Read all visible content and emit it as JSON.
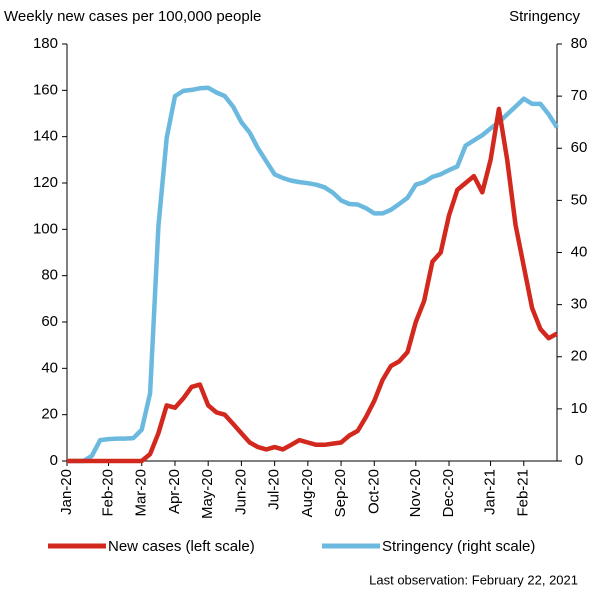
{
  "chart_data": {
    "type": "line",
    "y_label": "Weekly new cases per 100,000 people",
    "y2_label": "Stringency",
    "note": "Last observation: February 22, 2021",
    "categories": [
      "Jan-20",
      null,
      null,
      null,
      null,
      "Feb-20",
      null,
      null,
      null,
      "Mar-20",
      null,
      null,
      null,
      "Apr-20",
      null,
      null,
      null,
      "May-20",
      null,
      null,
      null,
      "Jun-20",
      null,
      null,
      null,
      "Jul-20",
      null,
      null,
      null,
      "Aug-20",
      null,
      null,
      null,
      "Sep-20",
      null,
      null,
      null,
      "Oct-20",
      null,
      null,
      null,
      null,
      "Nov-20",
      null,
      null,
      null,
      "Dec-20",
      null,
      null,
      null,
      null,
      "Jan-21",
      null,
      null,
      null,
      "Feb-21",
      null,
      null,
      null,
      null
    ],
    "series": [
      {
        "name": "New cases (left scale)",
        "color": "#d2281e",
        "axis": "y",
        "values": [
          0,
          0,
          0,
          0,
          0,
          0,
          0,
          0,
          0,
          0,
          3,
          12,
          24,
          23,
          27,
          32,
          33,
          24,
          21,
          20,
          16,
          12,
          8,
          6,
          5,
          6,
          5,
          7,
          9,
          8,
          7,
          7,
          7.5,
          8,
          11,
          13,
          19,
          26,
          35,
          41,
          43,
          47,
          60,
          69,
          86,
          90,
          106,
          117,
          120,
          123,
          116,
          130,
          152,
          130,
          102,
          84,
          66,
          57,
          53,
          55
        ]
      },
      {
        "name": "Stringency (right scale)",
        "color": "#6cb9e0",
        "axis": "y2",
        "values": [
          0,
          0,
          0,
          1,
          4,
          4.2,
          4.3,
          4.3,
          4.4,
          6,
          13,
          45,
          62,
          70,
          71,
          71.2,
          71.5,
          71.6,
          70.7,
          70,
          68,
          65,
          63,
          60,
          57.5,
          55,
          54.3,
          53.8,
          53.5,
          53.3,
          53,
          52.5,
          51.5,
          50,
          49.3,
          49.2,
          48.5,
          47.5,
          47.5,
          48.2,
          49.3,
          50.5,
          53,
          53.5,
          54.5,
          55,
          55.8,
          56.5,
          60.5,
          61.5,
          62.5,
          63.8,
          65,
          66.5,
          68,
          69.5,
          68.5,
          68.5,
          66.5,
          64
        ]
      }
    ],
    "ylim": [
      0,
      180
    ],
    "yticks": [
      0,
      20,
      40,
      60,
      80,
      100,
      120,
      140,
      160,
      180
    ],
    "y2lim": [
      0,
      80
    ],
    "y2ticks": [
      0,
      10,
      20,
      30,
      40,
      50,
      60,
      70,
      80
    ]
  }
}
